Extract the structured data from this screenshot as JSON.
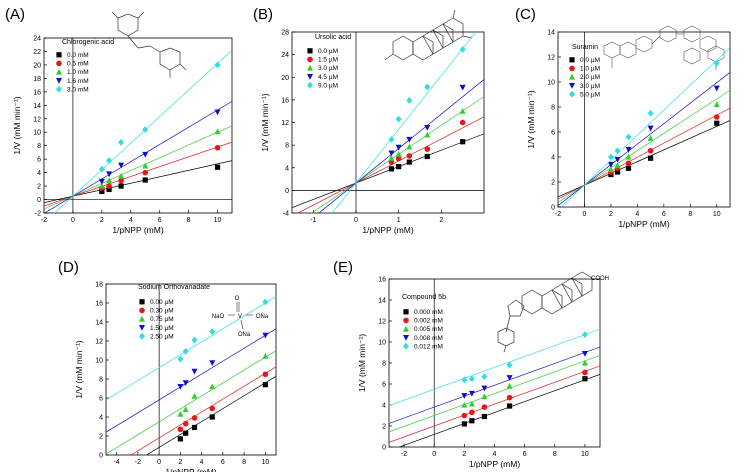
{
  "colors": {
    "series": [
      "#000000",
      "#e31a1c",
      "#33cc33",
      "#1010cc",
      "#33dddd"
    ],
    "axis": "#000000"
  },
  "series_markers": [
    "square",
    "circle",
    "triangle-up",
    "triangle-down",
    "diamond"
  ],
  "chart_data": [
    {
      "type": "scatter",
      "panel": "(A)",
      "title": "Chlorogenic acid",
      "xlabel": "1/pNPP (mM)",
      "ylabel": "1/V (mM min⁻¹)",
      "xlim": [
        -2,
        11
      ],
      "ylim": [
        -2,
        24
      ],
      "xticks": [
        -2,
        0,
        2,
        4,
        6,
        8,
        10
      ],
      "yticks": [
        -2,
        0,
        2,
        4,
        6,
        8,
        10,
        12,
        14,
        16,
        18,
        20,
        22,
        24
      ],
      "legend_position": "top-left",
      "x": [
        2,
        2.5,
        3.33,
        5,
        10
      ],
      "series": [
        {
          "name": "0.0 mM",
          "values": [
            1.2,
            1.5,
            2.0,
            2.9,
            4.8
          ],
          "line": {
            "intercept": 0.5,
            "slope": 0.48
          }
        },
        {
          "name": "0.5 mM",
          "values": [
            1.7,
            2.0,
            2.8,
            4.0,
            7.7
          ],
          "line": {
            "intercept": 0.5,
            "slope": 0.73
          }
        },
        {
          "name": "1.0 mM",
          "values": [
            2.0,
            2.8,
            3.5,
            5.0,
            10.1
          ],
          "line": {
            "intercept": 0.5,
            "slope": 0.95
          }
        },
        {
          "name": "1.6 mM",
          "values": [
            2.7,
            3.8,
            5.1,
            6.7,
            13.0
          ],
          "line": {
            "intercept": 0.5,
            "slope": 1.28
          }
        },
        {
          "name": "3.0 mM",
          "values": [
            4.5,
            5.8,
            8.5,
            10.4,
            20.0
          ],
          "line": {
            "intercept": 0.5,
            "slope": 1.97
          }
        }
      ]
    },
    {
      "type": "scatter",
      "panel": "(B)",
      "title": "Ursolic acid",
      "xlabel": "1/pNPP (mM)",
      "ylabel": "1/V (mM min⁻¹)",
      "xlim": [
        -1.5,
        3.0
      ],
      "ylim": [
        -4,
        28
      ],
      "xticks": [
        -1,
        0,
        1,
        2
      ],
      "yticks": [
        -4,
        0,
        4,
        8,
        12,
        16,
        20,
        24,
        28
      ],
      "legend_position": "top-left",
      "x": [
        0.83,
        1.0,
        1.25,
        1.67,
        2.5
      ],
      "series": [
        {
          "name": "0.0 µM",
          "values": [
            3.8,
            4.2,
            5.0,
            6.0,
            8.6
          ],
          "line": {
            "intercept": 1.3,
            "slope": 2.9
          }
        },
        {
          "name": "1.5 µM",
          "values": [
            5.0,
            5.6,
            6.1,
            7.3,
            12.0
          ],
          "line": {
            "intercept": 1.3,
            "slope": 3.9
          }
        },
        {
          "name": "3.0 µM",
          "values": [
            5.7,
            6.4,
            7.7,
            9.8,
            14.0
          ],
          "line": {
            "intercept": 1.3,
            "slope": 5.1
          }
        },
        {
          "name": "4.5 µM",
          "values": [
            6.6,
            7.6,
            9.0,
            11.1,
            18.2
          ],
          "line": {
            "intercept": 1.3,
            "slope": 6.1
          }
        },
        {
          "name": "9.0 µM",
          "values": [
            9.0,
            12.6,
            15.9,
            18.3,
            24.9
          ],
          "line": {
            "intercept": 1.3,
            "slope": 9.5
          }
        }
      ]
    },
    {
      "type": "scatter",
      "panel": "(C)",
      "title": "Suramin",
      "xlabel": "1/pNPP (mM)",
      "ylabel": "1/V (mM min⁻¹)",
      "xlim": [
        -2,
        11
      ],
      "ylim": [
        0,
        14
      ],
      "xticks": [
        -2,
        0,
        2,
        4,
        6,
        8,
        10
      ],
      "yticks": [
        0,
        2,
        4,
        6,
        8,
        10,
        12,
        14
      ],
      "legend_position": "top-left",
      "x": [
        2,
        2.5,
        3.33,
        5,
        10
      ],
      "series": [
        {
          "name": "0.0 µM",
          "values": [
            2.6,
            2.8,
            3.1,
            3.9,
            6.7
          ],
          "line": {
            "intercept": 1.75,
            "slope": 0.47
          }
        },
        {
          "name": "1.0 µM",
          "values": [
            2.8,
            3.1,
            3.5,
            4.5,
            7.2
          ],
          "line": {
            "intercept": 1.75,
            "slope": 0.56
          }
        },
        {
          "name": "2.0 µM",
          "values": [
            3.0,
            3.3,
            4.0,
            5.5,
            8.2
          ],
          "line": {
            "intercept": 1.75,
            "slope": 0.69
          }
        },
        {
          "name": "3.0 µM",
          "values": [
            3.4,
            3.8,
            4.6,
            6.3,
            9.5
          ],
          "line": {
            "intercept": 1.75,
            "slope": 0.82
          }
        },
        {
          "name": "5.0 µM",
          "values": [
            4.0,
            4.5,
            5.6,
            7.5,
            11.5
          ],
          "line": {
            "intercept": 1.75,
            "slope": 1.0
          }
        }
      ]
    },
    {
      "type": "scatter",
      "panel": "(D)",
      "title": "Sodium Orthovanadate",
      "xlabel": "1/pNPP (mM)",
      "ylabel": "1/V (mM min⁻¹)",
      "xlim": [
        -5,
        11
      ],
      "ylim": [
        0,
        18
      ],
      "xticks": [
        -4,
        -2,
        0,
        2,
        4,
        6,
        8,
        10
      ],
      "yticks": [
        0,
        2,
        4,
        6,
        8,
        10,
        12,
        14,
        16,
        18
      ],
      "legend_position": "top-left",
      "x": [
        2,
        2.5,
        3.33,
        5,
        10
      ],
      "series": [
        {
          "name": "0.00  µM",
          "values": [
            1.7,
            2.3,
            2.9,
            4.0,
            7.4
          ],
          "line": {
            "intercept": 0.8,
            "slope": 0.68
          }
        },
        {
          "name": "0.30  µM",
          "values": [
            2.7,
            3.3,
            3.9,
            4.9,
            8.5
          ],
          "line": {
            "intercept": 1.8,
            "slope": 0.68
          }
        },
        {
          "name": "0.75  µM",
          "values": [
            4.3,
            4.8,
            6.2,
            7.2,
            10.4
          ],
          "line": {
            "intercept": 3.5,
            "slope": 0.68
          }
        },
        {
          "name": "1.50  µM",
          "values": [
            7.2,
            7.6,
            8.8,
            9.7,
            12.6
          ],
          "line": {
            "intercept": 5.8,
            "slope": 0.68
          }
        },
        {
          "name": "2.50  µM",
          "values": [
            10.1,
            10.9,
            12.1,
            13.0,
            16.1
          ],
          "line": {
            "intercept": 9.2,
            "slope": 0.68
          }
        }
      ]
    },
    {
      "type": "scatter",
      "panel": "(E)",
      "title": "Compound 5b",
      "xlabel": "1/pNPP (mM)",
      "ylabel": "1/V (mM min⁻¹)",
      "xlim": [
        -3,
        11
      ],
      "ylim": [
        0,
        16
      ],
      "xticks": [
        -2,
        0,
        2,
        4,
        6,
        8,
        10
      ],
      "yticks": [
        0,
        2,
        4,
        6,
        8,
        10,
        12,
        14,
        16
      ],
      "legend_position": "top-left",
      "x": [
        2,
        2.5,
        3.33,
        5,
        10
      ],
      "series": [
        {
          "name": "0.000  mM",
          "values": [
            2.2,
            2.5,
            2.9,
            3.9,
            6.5
          ],
          "line": {
            "intercept": 1.2,
            "slope": 0.52
          }
        },
        {
          "name": "0.002  mM",
          "values": [
            3.0,
            3.3,
            3.8,
            4.7,
            7.1
          ],
          "line": {
            "intercept": 2.0,
            "slope": 0.52
          }
        },
        {
          "name": "0.005  mM",
          "values": [
            4.0,
            4.1,
            4.8,
            5.8,
            8.0
          ],
          "line": {
            "intercept": 3.0,
            "slope": 0.52
          }
        },
        {
          "name": "0.008  mM",
          "values": [
            4.9,
            5.1,
            5.6,
            6.6,
            8.9
          ],
          "line": {
            "intercept": 3.8,
            "slope": 0.52
          }
        },
        {
          "name": "0.012  mM",
          "values": [
            6.4,
            6.5,
            6.7,
            7.8,
            10.7
          ],
          "line": {
            "intercept": 5.5,
            "slope": 0.52
          }
        }
      ]
    }
  ],
  "structure_labels": {
    "vanadate": {
      "top": "O",
      "left": "NaO",
      "center": "V",
      "right": "ONa",
      "bottom": "ONa"
    },
    "compound5b": {
      "acid": "COOH"
    }
  }
}
